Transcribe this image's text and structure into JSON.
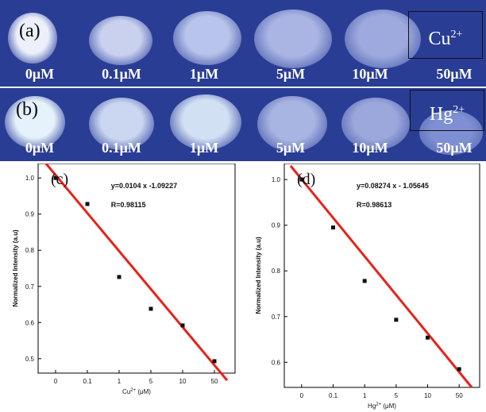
{
  "images": [
    {
      "panel_label": "(a)",
      "ion_base": "Cu",
      "ion_charge": "2+",
      "concentrations": [
        "0μM",
        "0.1μM",
        "1μM",
        "5μM",
        "10μM",
        "50μM"
      ],
      "spot_colors": [
        "#ecf0fb",
        "#c9d1ef",
        "#b9c4ec",
        "#aab5e4",
        "#9eaade",
        ""
      ]
    },
    {
      "panel_label": "(b)",
      "ion_base": "Hg",
      "ion_charge": "2+",
      "concentrations": [
        "0μM",
        "0.1μM",
        "1μM",
        "5μM",
        "10μM",
        "50μM"
      ],
      "spot_colors": [
        "#e6f2fb",
        "#cbd7f0",
        "#d2e0f4",
        "#a8b4e2",
        "#9ca8dc",
        "#7e8fd4"
      ]
    }
  ],
  "colors": {
    "strip_background": "#2a3d95",
    "fit_line": "#e8221a",
    "points": "#111111",
    "axis": "#000000"
  },
  "chart_data": [
    {
      "type": "scatter",
      "panel_label": "(c)",
      "equation": "y=0.0104 x -1.09227",
      "r_value": "R=0.98115",
      "xlabel_base": "Cu",
      "xlabel_charge": "2+",
      "xlabel_unit": " (μM)",
      "ylabel": "Normalized Intensity (a.u)",
      "categories": [
        "0",
        "0.1",
        "1",
        "5",
        "10",
        "50"
      ],
      "values": [
        1.0,
        0.928,
        0.726,
        0.638,
        0.592,
        0.493
      ],
      "yticks": [
        "0.5",
        "0.6",
        "0.7",
        "0.8",
        "0.9",
        "1.0"
      ],
      "ylim": [
        0.46,
        1.04
      ],
      "fit_line": {
        "x": [
          -0.35,
          5.4
        ],
        "y": [
          1.045,
          0.44
        ]
      },
      "grid": false
    },
    {
      "type": "scatter",
      "panel_label": "(d)",
      "equation": "y=0.08274 x - 1.05645",
      "r_value": "R=0.98613",
      "xlabel_base": "Hg",
      "xlabel_charge": "2+",
      "xlabel_unit": " (μM)",
      "ylabel": "Normalized Intensity (a.u)",
      "categories": [
        "0",
        "0.1",
        "1",
        "5",
        "10",
        "50"
      ],
      "values": [
        1.0,
        0.895,
        0.778,
        0.693,
        0.654,
        0.585
      ],
      "yticks": [
        "0.6",
        "0.7",
        "0.8",
        "0.9",
        "1.0"
      ],
      "ylim": [
        0.545,
        1.035
      ],
      "fit_line": {
        "x": [
          -0.35,
          5.4
        ],
        "y": [
          1.03,
          0.545
        ]
      },
      "grid": false
    }
  ]
}
